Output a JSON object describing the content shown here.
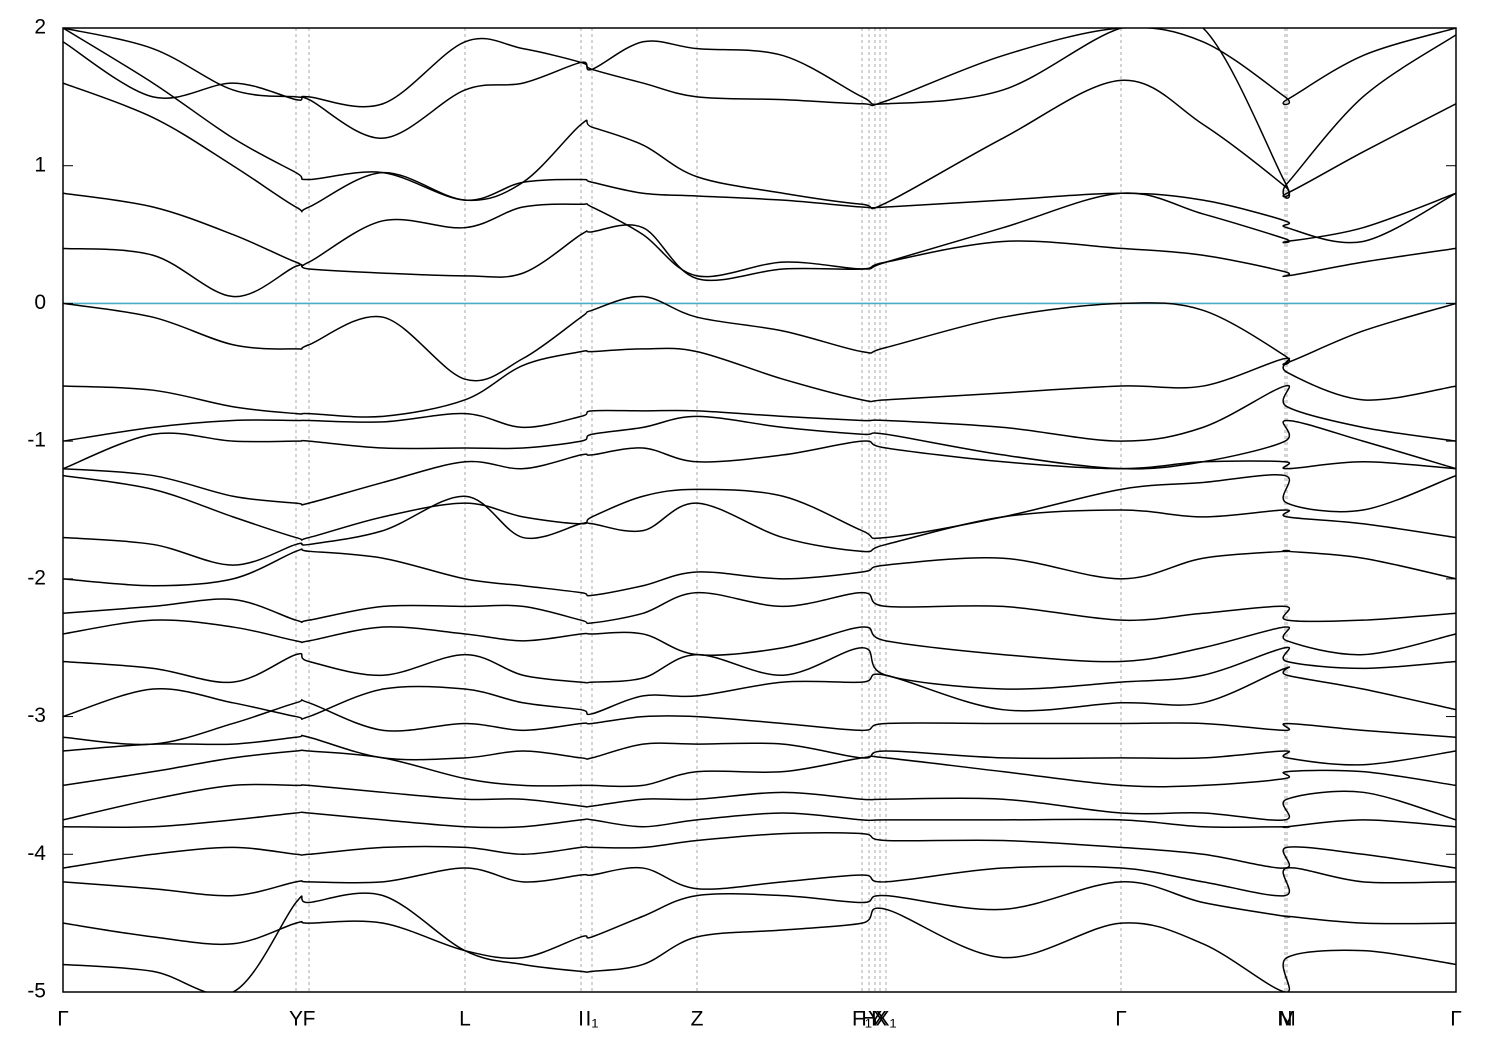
{
  "chart_data": {
    "type": "line",
    "xlim": [
      0,
      1.393
    ],
    "ylim": [
      -5,
      2
    ],
    "yticks": [
      -5,
      -4,
      -3,
      -2,
      -1,
      0,
      1,
      2
    ],
    "xticks": [
      {
        "value": 0,
        "label": "Γ"
      },
      {
        "value": 0.233,
        "label": "Y"
      },
      {
        "value": 0.246,
        "label": "F"
      },
      {
        "value": 0.402,
        "label": "L"
      },
      {
        "value": 0.518,
        "label": "I"
      },
      {
        "value": 0.529,
        "label": "I₁"
      },
      {
        "value": 0.634,
        "label": "Z"
      },
      {
        "value": 0.799,
        "label": "F₁"
      },
      {
        "value": 0.806,
        "label": "H"
      },
      {
        "value": 0.812,
        "label": "Y"
      },
      {
        "value": 0.817,
        "label": "X"
      },
      {
        "value": 0.823,
        "label": "X₁"
      },
      {
        "value": 1.058,
        "label": "Γ"
      },
      {
        "value": 1.222,
        "label": "N"
      },
      {
        "value": 1.224,
        "label": "M"
      },
      {
        "value": 1.393,
        "label": "Γ"
      }
    ],
    "xgrid": true,
    "color": "#000000",
    "fermi_level": 0,
    "fermi_color": "#4bacc6",
    "x": [
      0,
      0.09,
      0.17,
      0.233,
      0.246,
      0.32,
      0.402,
      0.46,
      0.518,
      0.529,
      0.58,
      0.634,
      0.72,
      0.799,
      0.823,
      0.94,
      1.058,
      1.14,
      1.222,
      1.224,
      1.3,
      1.393
    ],
    "series": [
      {
        "values": [
          2.0,
          1.85,
          1.55,
          1.5,
          1.5,
          1.45,
          1.9,
          1.85,
          1.75,
          1.7,
          1.6,
          1.5,
          1.48,
          1.45,
          1.47,
          1.8,
          2.0,
          1.9,
          1.5,
          1.48,
          1.8,
          2.0
        ]
      },
      {
        "values": [
          1.9,
          1.5,
          1.6,
          1.48,
          1.48,
          1.2,
          1.55,
          1.6,
          1.75,
          1.7,
          1.9,
          1.85,
          1.8,
          1.5,
          1.45,
          1.55,
          2.0,
          2.0,
          0.88,
          0.87,
          1.5,
          1.95
        ]
      },
      {
        "values": [
          2.0,
          1.6,
          1.2,
          0.95,
          0.9,
          0.95,
          0.75,
          0.88,
          0.9,
          0.88,
          0.8,
          0.78,
          0.75,
          0.7,
          0.7,
          0.75,
          0.8,
          0.75,
          0.6,
          0.55,
          0.45,
          0.8
        ]
      },
      {
        "values": [
          1.6,
          1.35,
          1.0,
          0.7,
          0.7,
          0.95,
          0.75,
          0.88,
          1.3,
          1.28,
          1.15,
          0.92,
          0.8,
          0.72,
          0.73,
          1.2,
          1.62,
          1.3,
          0.85,
          0.8,
          1.1,
          1.45
        ]
      },
      {
        "values": [
          0.8,
          0.7,
          0.5,
          0.3,
          0.3,
          0.6,
          0.55,
          0.7,
          0.72,
          0.7,
          0.5,
          0.2,
          0.3,
          0.25,
          0.3,
          0.55,
          0.8,
          0.65,
          0.47,
          0.45,
          0.55,
          0.8
        ]
      },
      {
        "values": [
          0.4,
          0.35,
          0.05,
          0.27,
          0.25,
          0.22,
          0.2,
          0.22,
          0.5,
          0.52,
          0.55,
          0.18,
          0.25,
          0.25,
          0.3,
          0.45,
          0.4,
          0.35,
          0.23,
          0.2,
          0.3,
          0.4
        ]
      },
      {
        "values": [
          0,
          -0.1,
          -0.3,
          -0.33,
          -0.3,
          -0.1,
          -0.55,
          -0.4,
          -0.1,
          -0.05,
          0.05,
          -0.1,
          -0.2,
          -0.35,
          -0.32,
          -0.1,
          0,
          -0.05,
          -0.38,
          -0.43,
          -0.2,
          0
        ]
      },
      {
        "values": [
          -0.6,
          -0.63,
          -0.75,
          -0.8,
          -0.8,
          -0.82,
          -0.7,
          -0.45,
          -0.35,
          -0.35,
          -0.33,
          -0.35,
          -0.55,
          -0.7,
          -0.7,
          -0.65,
          -0.6,
          -0.6,
          -0.4,
          -0.5,
          -0.7,
          -0.6
        ]
      },
      {
        "values": [
          -1.0,
          -0.9,
          -0.85,
          -0.85,
          -0.85,
          -0.86,
          -0.8,
          -0.9,
          -0.82,
          -0.78,
          -0.78,
          -0.78,
          -0.82,
          -0.85,
          -0.85,
          -0.9,
          -1.0,
          -0.9,
          -0.6,
          -0.75,
          -0.9,
          -1.0
        ]
      },
      {
        "values": [
          -1.2,
          -0.95,
          -1.0,
          -1.0,
          -1.0,
          -1.05,
          -1.05,
          -1.05,
          -1.0,
          -0.95,
          -0.9,
          -0.82,
          -0.9,
          -0.95,
          -0.95,
          -1.1,
          -1.2,
          -1.15,
          -1.0,
          -0.85,
          -1.0,
          -1.2
        ]
      },
      {
        "values": [
          -1.2,
          -1.25,
          -1.4,
          -1.45,
          -1.45,
          -1.3,
          -1.15,
          -1.2,
          -1.1,
          -1.1,
          -1.05,
          -1.15,
          -1.1,
          -1.0,
          -1.05,
          -1.15,
          -1.2,
          -1.15,
          -1.15,
          -1.2,
          -1.15,
          -1.2
        ]
      },
      {
        "values": [
          -1.25,
          -1.35,
          -1.55,
          -1.7,
          -1.7,
          -1.55,
          -1.45,
          -1.55,
          -1.6,
          -1.55,
          -1.4,
          -1.35,
          -1.4,
          -1.65,
          -1.7,
          -1.55,
          -1.35,
          -1.3,
          -1.25,
          -1.45,
          -1.5,
          -1.25
        ]
      },
      {
        "values": [
          -1.7,
          -1.75,
          -1.9,
          -1.75,
          -1.75,
          -1.65,
          -1.4,
          -1.7,
          -1.6,
          -1.6,
          -1.65,
          -1.45,
          -1.7,
          -1.8,
          -1.75,
          -1.55,
          -1.5,
          -1.55,
          -1.5,
          -1.55,
          -1.6,
          -1.7
        ]
      },
      {
        "values": [
          -2.0,
          -2.05,
          -2.0,
          -1.8,
          -1.8,
          -1.85,
          -2.0,
          -2.05,
          -2.1,
          -2.12,
          -2.05,
          -1.95,
          -2.0,
          -1.95,
          -1.9,
          -1.85,
          -2.0,
          -1.85,
          -1.8,
          -1.8,
          -1.85,
          -2.0
        ]
      },
      {
        "values": [
          -2.25,
          -2.2,
          -2.15,
          -2.3,
          -2.3,
          -2.2,
          -2.2,
          -2.2,
          -2.3,
          -2.32,
          -2.25,
          -2.1,
          -2.2,
          -2.1,
          -2.2,
          -2.2,
          -2.3,
          -2.25,
          -2.2,
          -2.3,
          -2.3,
          -2.25
        ]
      },
      {
        "values": [
          -2.4,
          -2.3,
          -2.35,
          -2.45,
          -2.45,
          -2.35,
          -2.4,
          -2.45,
          -2.4,
          -2.4,
          -2.4,
          -2.55,
          -2.5,
          -2.35,
          -2.45,
          -2.55,
          -2.6,
          -2.5,
          -2.35,
          -2.45,
          -2.55,
          -2.4
        ]
      },
      {
        "values": [
          -2.6,
          -2.65,
          -2.75,
          -2.55,
          -2.6,
          -2.7,
          -2.55,
          -2.7,
          -2.75,
          -2.75,
          -2.72,
          -2.55,
          -2.7,
          -2.5,
          -2.7,
          -2.8,
          -2.75,
          -2.7,
          -2.5,
          -2.6,
          -2.65,
          -2.6
        ]
      },
      {
        "values": [
          -3.0,
          -2.8,
          -2.9,
          -3.0,
          -3.0,
          -2.8,
          -2.8,
          -2.9,
          -2.95,
          -2.98,
          -2.85,
          -2.85,
          -2.75,
          -2.75,
          -2.7,
          -2.95,
          -2.9,
          -2.9,
          -2.65,
          -2.7,
          -2.8,
          -2.95
        ]
      },
      {
        "values": [
          -3.15,
          -3.2,
          -3.05,
          -2.9,
          -2.9,
          -3.1,
          -3.05,
          -3.1,
          -3.05,
          -3.05,
          -3.0,
          -3.0,
          -3.05,
          -3.1,
          -3.05,
          -3.05,
          -3.05,
          -3.05,
          -3.1,
          -3.05,
          -3.1,
          -3.15
        ]
      },
      {
        "values": [
          -3.25,
          -3.2,
          -3.2,
          -3.15,
          -3.15,
          -3.3,
          -3.3,
          -3.25,
          -3.3,
          -3.3,
          -3.2,
          -3.2,
          -3.2,
          -3.3,
          -3.25,
          -3.3,
          -3.3,
          -3.3,
          -3.25,
          -3.3,
          -3.35,
          -3.25
        ]
      },
      {
        "values": [
          -3.5,
          -3.4,
          -3.3,
          -3.25,
          -3.25,
          -3.3,
          -3.45,
          -3.5,
          -3.5,
          -3.5,
          -3.5,
          -3.4,
          -3.4,
          -3.3,
          -3.3,
          -3.4,
          -3.5,
          -3.5,
          -3.45,
          -3.4,
          -3.4,
          -3.5
        ]
      },
      {
        "values": [
          -3.75,
          -3.6,
          -3.5,
          -3.5,
          -3.5,
          -3.55,
          -3.6,
          -3.6,
          -3.65,
          -3.65,
          -3.6,
          -3.6,
          -3.55,
          -3.6,
          -3.6,
          -3.6,
          -3.7,
          -3.7,
          -3.75,
          -3.6,
          -3.55,
          -3.75
        ]
      },
      {
        "values": [
          -3.8,
          -3.8,
          -3.75,
          -3.7,
          -3.7,
          -3.75,
          -3.8,
          -3.8,
          -3.75,
          -3.75,
          -3.8,
          -3.75,
          -3.7,
          -3.75,
          -3.75,
          -3.75,
          -3.75,
          -3.8,
          -3.8,
          -3.8,
          -3.75,
          -3.8
        ]
      },
      {
        "values": [
          -4.1,
          -4.0,
          -3.95,
          -4.0,
          -4.0,
          -3.95,
          -3.95,
          -4.0,
          -3.95,
          -3.95,
          -3.95,
          -3.9,
          -3.85,
          -3.85,
          -3.9,
          -3.9,
          -3.95,
          -4.0,
          -4.1,
          -3.95,
          -4.0,
          -4.1
        ]
      },
      {
        "values": [
          -4.2,
          -4.25,
          -4.3,
          -4.2,
          -4.2,
          -4.2,
          -4.1,
          -4.2,
          -4.15,
          -4.15,
          -4.1,
          -4.25,
          -4.2,
          -4.15,
          -4.2,
          -4.1,
          -4.1,
          -4.2,
          -4.3,
          -4.1,
          -4.2,
          -4.2
        ]
      },
      {
        "values": [
          -4.5,
          -4.6,
          -4.65,
          -4.5,
          -4.5,
          -4.5,
          -4.7,
          -4.75,
          -4.6,
          -4.6,
          -4.45,
          -4.3,
          -4.3,
          -4.35,
          -4.3,
          -4.4,
          -4.2,
          -4.35,
          -4.45,
          -4.45,
          -4.5,
          -4.5
        ]
      },
      {
        "values": [
          -4.8,
          -4.85,
          -5.0,
          -4.35,
          -4.35,
          -4.3,
          -4.7,
          -4.8,
          -4.85,
          -4.85,
          -4.8,
          -4.6,
          -4.55,
          -4.5,
          -4.4,
          -4.75,
          -4.5,
          -4.65,
          -5.0,
          -4.75,
          -4.7,
          -4.8
        ]
      }
    ]
  }
}
